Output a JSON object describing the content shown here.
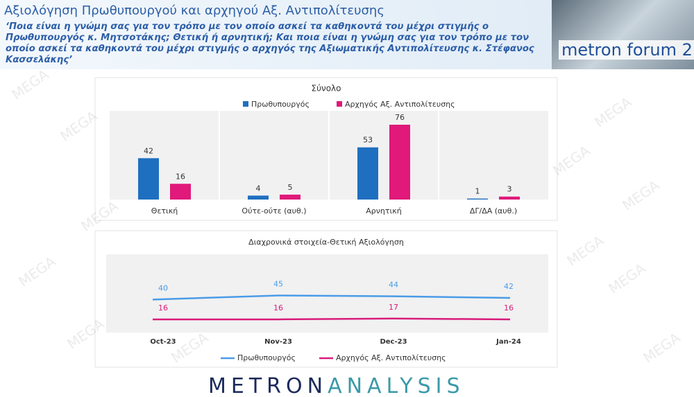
{
  "header": {
    "title": "Αξιολόγηση Πρωθυπουργού και αρχηγού Αξ. Αντιπολίτευσης",
    "question": "‘Ποια είναι η γνώμη σας για τον τρόπο με τον οποίο ασκεί τα καθηκοντά του μέχρι στιγμής ο Πρωθυπουργός κ. Μητσοτάκης; Θετική ή αρνητική; Και ποια είναι η γνώμη σας για τον τρόπο με τον οποίο ασκεί τα καθηκοντά του μέχρι στιγμής ο αρχηγός της Αξιωματικής Αντιπολίτευσης κ. Στέφανος Κασσελάκης’",
    "logo": "metron forum 2"
  },
  "watermark": "MEGA",
  "footer": {
    "part1": "METRON",
    "part2": "ANALYSIS"
  },
  "chart_data": [
    {
      "type": "bar",
      "title": "Σύνολο",
      "categories": [
        "Θετική",
        "Ούτε-ούτε (αυθ.)",
        "Αρνητική",
        "ΔΓ/ΔΑ (αυθ.)"
      ],
      "series": [
        {
          "name": "Πρωθυπουργός",
          "color": "#1f6fc0",
          "values": [
            42,
            4,
            53,
            1
          ]
        },
        {
          "name": "Αρχηγός Αξ. Αντιπολίτευσης",
          "color": "#e0197a",
          "values": [
            16,
            5,
            76,
            3
          ]
        }
      ]
    },
    {
      "type": "line",
      "title": "Διαχρονικά στοιχεία-Θετική Αξιολόγηση",
      "categories": [
        "Oct-23",
        "Nov-23",
        "Dec-23",
        "Jan-24"
      ],
      "series": [
        {
          "name": "Πρωθυπουργός",
          "color": "#4a9be8",
          "values": [
            40,
            45,
            44,
            42
          ]
        },
        {
          "name": "Αρχηγός Αξ. Αντιπολίτευσης",
          "color": "#d81b7a",
          "values": [
            16,
            16,
            17,
            16
          ]
        }
      ]
    }
  ]
}
